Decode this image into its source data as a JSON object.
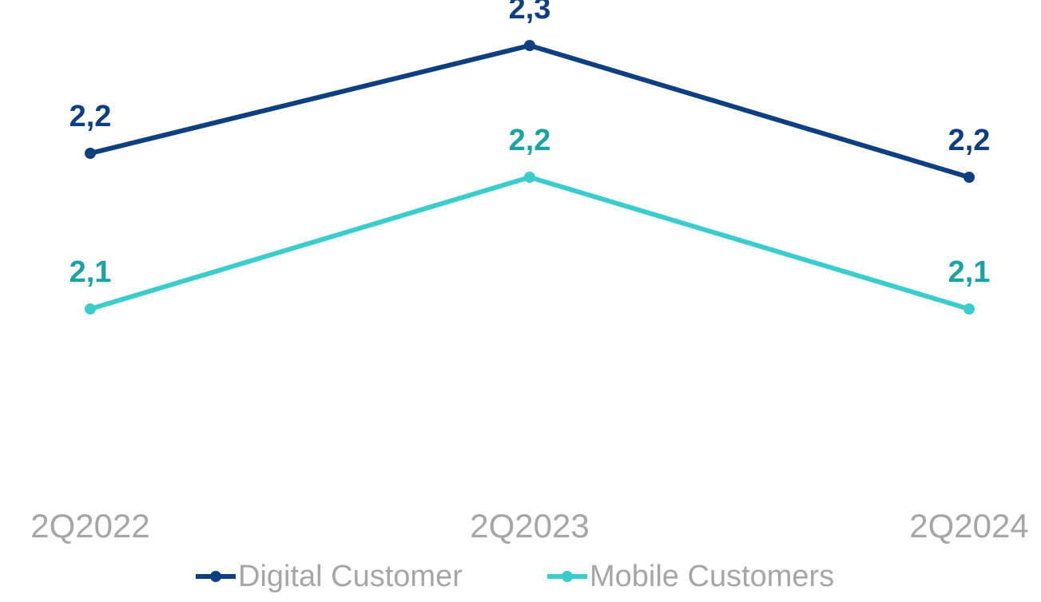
{
  "chart_data": {
    "type": "line",
    "categories": [
      "2Q2022",
      "2Q2023",
      "2Q2024"
    ],
    "series": [
      {
        "name": "Digital Customer",
        "color": "#0e3f7e",
        "label_color": "#0e3f7e",
        "values": [
          2.21,
          2.3,
          2.19
        ],
        "value_labels": [
          "2,2",
          "2,3",
          "2,2"
        ]
      },
      {
        "name": "Mobile Customers",
        "color": "#3ccccc",
        "label_color": "#1ba3a3",
        "values": [
          2.08,
          2.19,
          2.08
        ],
        "value_labels": [
          "2,1",
          "2,2",
          "2,1"
        ]
      }
    ],
    "ylim": [
      1.95,
      2.33
    ],
    "legend": "bottom"
  }
}
